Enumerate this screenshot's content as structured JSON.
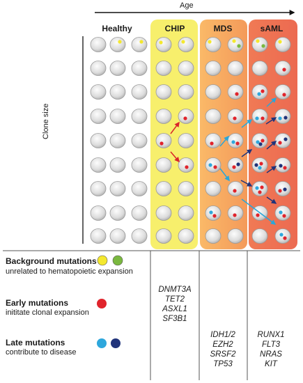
{
  "axis": {
    "age_label": "Age",
    "clone_size_label": "Clone size"
  },
  "stages": [
    {
      "label": "Healthy",
      "color": "#ffffff"
    },
    {
      "label": "CHIP",
      "color": "#f7ef6c"
    },
    {
      "label": "MDS",
      "color": "#f6aa5c"
    },
    {
      "label": "sAML",
      "color": "#ef7457"
    }
  ],
  "legend": {
    "background": {
      "title": "Background mutations",
      "subtitle": "unrelated to hematopoietic expansion",
      "colors": [
        "#f4e82e",
        "#7ab83f"
      ]
    },
    "early": {
      "title": "Early mutations",
      "subtitle": "inititate clonal expansion",
      "colors": [
        "#e0242c"
      ]
    },
    "late": {
      "title": "Late mutations",
      "subtitle": "contribute to disease",
      "colors": [
        "#2ea7dc",
        "#20337a"
      ]
    }
  },
  "genes": {
    "chip": [
      "DNMT3A",
      "TET2",
      "ASXL1",
      "SF3B1"
    ],
    "mds": [
      "IDH1/2",
      "EZH2",
      "SRSF2",
      "TP53"
    ],
    "saml": [
      "RUNX1",
      "FLT3",
      "NRAS",
      "KIT"
    ]
  }
}
